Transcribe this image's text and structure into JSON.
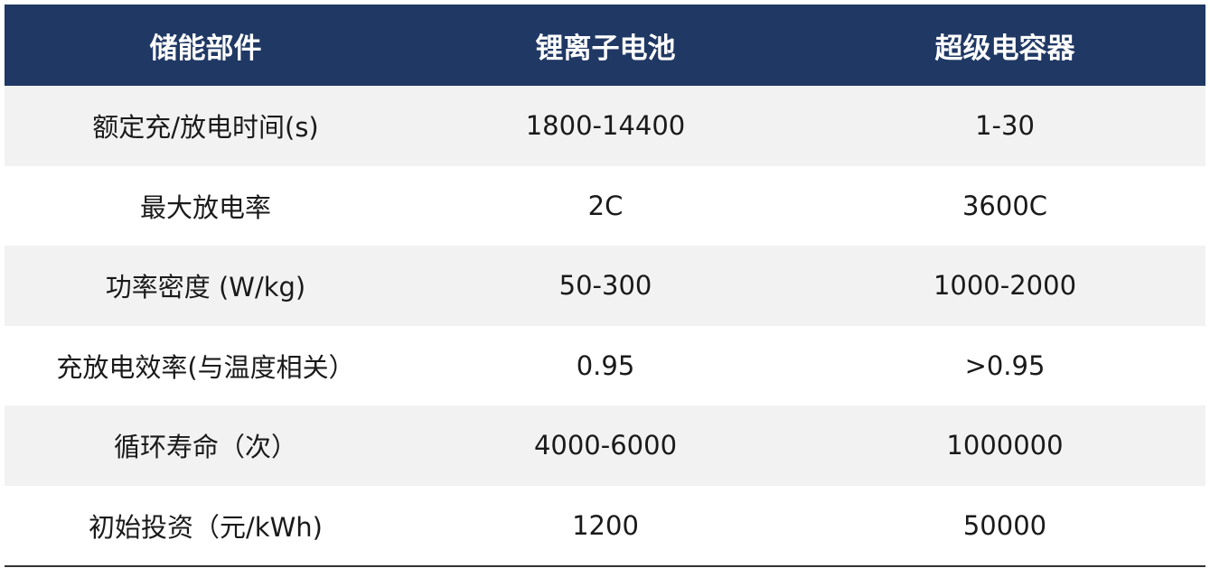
{
  "table": {
    "header": [
      "储能部件",
      "锂离子电池",
      "超级电容器"
    ],
    "rows": [
      [
        "额定充/放电时间(s)",
        "1800-14400",
        "1-30"
      ],
      [
        "最大放电率",
        "2C",
        "3600C"
      ],
      [
        "功率密度 (W/kg)",
        "50-300",
        "1000-2000"
      ],
      [
        "充放电效率(与温度相关）",
        "0.95",
        ">0.95"
      ],
      [
        "循环寿命（次）",
        "4000-6000",
        "1000000"
      ],
      [
        "初始投资（元/kWh)",
        "1200",
        "50000"
      ]
    ]
  }
}
